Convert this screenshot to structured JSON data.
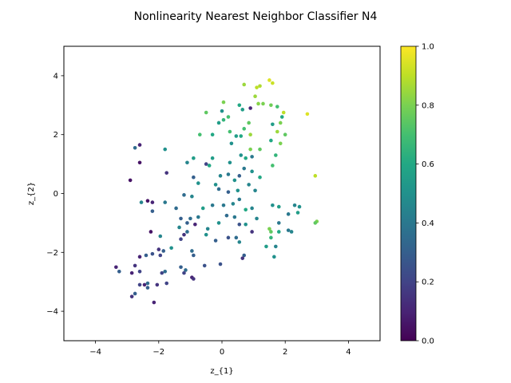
{
  "chart_data": {
    "type": "scatter",
    "title": "Nonlinearity Nearest Neighbor Classifier N4",
    "xlabel": "z_{1}",
    "ylabel": "z_{2}",
    "xlim": [
      -5,
      5
    ],
    "ylim": [
      -5,
      5
    ],
    "x_ticks": [
      -4,
      -2,
      0,
      2,
      4
    ],
    "x_tick_labels": [
      "−4",
      "−2",
      "0",
      "2",
      "4"
    ],
    "y_ticks": [
      -4,
      -2,
      0,
      2,
      4
    ],
    "y_tick_labels": [
      "−4",
      "−2",
      "0",
      "2",
      "4"
    ],
    "grid": false,
    "colormap": "viridis",
    "colorbar": {
      "range": [
        0.0,
        1.0
      ],
      "ticks": [
        0.0,
        0.2,
        0.4,
        0.6,
        0.8,
        1.0
      ],
      "tick_labels": [
        "0.0",
        "0.2",
        "0.4",
        "0.6",
        "0.8",
        "1.0"
      ]
    },
    "points": [
      {
        "x": 0.7,
        "y": 3.7,
        "c": 0.85
      },
      {
        "x": 1.1,
        "y": 3.6,
        "c": 0.9
      },
      {
        "x": 1.2,
        "y": 3.65,
        "c": 0.88
      },
      {
        "x": 1.5,
        "y": 3.85,
        "c": 0.95
      },
      {
        "x": 1.6,
        "y": 3.75,
        "c": 0.92
      },
      {
        "x": 1.05,
        "y": 3.3,
        "c": 0.85
      },
      {
        "x": 1.15,
        "y": 3.05,
        "c": 0.82
      },
      {
        "x": 1.3,
        "y": 3.05,
        "c": 0.8
      },
      {
        "x": 1.55,
        "y": 3.0,
        "c": 0.78
      },
      {
        "x": 1.75,
        "y": 2.95,
        "c": 0.7
      },
      {
        "x": 0.55,
        "y": 3.0,
        "c": 0.6
      },
      {
        "x": 0.05,
        "y": 3.1,
        "c": 0.8
      },
      {
        "x": 0.9,
        "y": 2.9,
        "c": 0.1
      },
      {
        "x": 0.0,
        "y": 2.8,
        "c": 0.5
      },
      {
        "x": 0.2,
        "y": 2.6,
        "c": 0.7
      },
      {
        "x": -0.5,
        "y": 2.75,
        "c": 0.75
      },
      {
        "x": 0.65,
        "y": 2.85,
        "c": 0.55
      },
      {
        "x": 1.9,
        "y": 2.6,
        "c": 0.6
      },
      {
        "x": 1.95,
        "y": 2.75,
        "c": 0.9
      },
      {
        "x": 2.7,
        "y": 2.7,
        "c": 0.95
      },
      {
        "x": 1.6,
        "y": 2.35,
        "c": 0.55
      },
      {
        "x": 0.85,
        "y": 2.4,
        "c": 0.75
      },
      {
        "x": 0.7,
        "y": 2.2,
        "c": 0.7
      },
      {
        "x": 0.25,
        "y": 2.1,
        "c": 0.7
      },
      {
        "x": -0.1,
        "y": 2.4,
        "c": 0.55
      },
      {
        "x": 0.05,
        "y": 2.5,
        "c": 0.65
      },
      {
        "x": 1.85,
        "y": 2.4,
        "c": 0.8
      },
      {
        "x": 1.75,
        "y": 2.1,
        "c": 0.85
      },
      {
        "x": 1.85,
        "y": 1.7,
        "c": 0.8
      },
      {
        "x": 0.9,
        "y": 2.0,
        "c": 0.85
      },
      {
        "x": 0.6,
        "y": 1.95,
        "c": 0.6
      },
      {
        "x": 0.45,
        "y": 1.95,
        "c": 0.55
      },
      {
        "x": -0.7,
        "y": 2.0,
        "c": 0.7
      },
      {
        "x": -0.3,
        "y": 2.0,
        "c": 0.6
      },
      {
        "x": 0.3,
        "y": 1.7,
        "c": 0.5
      },
      {
        "x": 1.55,
        "y": 1.8,
        "c": 0.6
      },
      {
        "x": 2.0,
        "y": 2.0,
        "c": 0.75
      },
      {
        "x": 0.6,
        "y": 1.3,
        "c": 0.5
      },
      {
        "x": 0.9,
        "y": 1.5,
        "c": 0.8
      },
      {
        "x": 1.2,
        "y": 1.5,
        "c": 0.75
      },
      {
        "x": 1.7,
        "y": 1.3,
        "c": 0.65
      },
      {
        "x": -0.3,
        "y": 1.2,
        "c": 0.55
      },
      {
        "x": -0.9,
        "y": 1.2,
        "c": 0.55
      },
      {
        "x": -1.1,
        "y": 1.05,
        "c": 0.45
      },
      {
        "x": -0.5,
        "y": 1.0,
        "c": 0.2
      },
      {
        "x": -0.4,
        "y": 0.95,
        "c": 0.6
      },
      {
        "x": 0.25,
        "y": 1.05,
        "c": 0.5
      },
      {
        "x": 0.75,
        "y": 1.2,
        "c": 0.6
      },
      {
        "x": 0.95,
        "y": 1.25,
        "c": 0.4
      },
      {
        "x": 1.6,
        "y": 0.95,
        "c": 0.7
      },
      {
        "x": -1.8,
        "y": 1.5,
        "c": 0.5
      },
      {
        "x": -2.75,
        "y": 1.55,
        "c": 0.35
      },
      {
        "x": -2.6,
        "y": 1.65,
        "c": 0.1
      },
      {
        "x": -2.6,
        "y": 1.05,
        "c": 0.05
      },
      {
        "x": -1.75,
        "y": 0.7,
        "c": 0.15
      },
      {
        "x": -2.9,
        "y": 0.45,
        "c": 0.05
      },
      {
        "x": -0.05,
        "y": 0.6,
        "c": 0.45
      },
      {
        "x": 0.2,
        "y": 0.65,
        "c": 0.4
      },
      {
        "x": 0.55,
        "y": 0.6,
        "c": 0.3
      },
      {
        "x": 0.7,
        "y": 0.85,
        "c": 0.4
      },
      {
        "x": 0.95,
        "y": 0.75,
        "c": 0.5
      },
      {
        "x": 1.2,
        "y": 0.55,
        "c": 0.6
      },
      {
        "x": -0.9,
        "y": 0.55,
        "c": 0.3
      },
      {
        "x": -0.75,
        "y": 0.35,
        "c": 0.5
      },
      {
        "x": -0.2,
        "y": 0.3,
        "c": 0.5
      },
      {
        "x": 0.4,
        "y": 0.45,
        "c": 0.5
      },
      {
        "x": -0.1,
        "y": 0.15,
        "c": 0.35
      },
      {
        "x": 0.2,
        "y": 0.05,
        "c": 0.3
      },
      {
        "x": 0.5,
        "y": 0.1,
        "c": 0.5
      },
      {
        "x": 0.85,
        "y": 0.3,
        "c": 0.45
      },
      {
        "x": 1.05,
        "y": 0.1,
        "c": 0.45
      },
      {
        "x": -1.2,
        "y": -0.05,
        "c": 0.35
      },
      {
        "x": -1.8,
        "y": -0.3,
        "c": 0.4
      },
      {
        "x": -2.35,
        "y": -0.25,
        "c": 0.05
      },
      {
        "x": -2.2,
        "y": -0.3,
        "c": 0.1
      },
      {
        "x": -2.55,
        "y": -0.3,
        "c": 0.45
      },
      {
        "x": -2.2,
        "y": -0.6,
        "c": 0.3
      },
      {
        "x": -1.45,
        "y": -0.5,
        "c": 0.35
      },
      {
        "x": -0.95,
        "y": -0.1,
        "c": 0.45
      },
      {
        "x": -0.6,
        "y": -0.5,
        "c": 0.55
      },
      {
        "x": -0.3,
        "y": -0.4,
        "c": 0.4
      },
      {
        "x": 0.05,
        "y": -0.4,
        "c": 0.4
      },
      {
        "x": 0.35,
        "y": -0.35,
        "c": 0.45
      },
      {
        "x": 0.55,
        "y": -0.2,
        "c": 0.4
      },
      {
        "x": 0.75,
        "y": -0.55,
        "c": 0.6
      },
      {
        "x": 0.95,
        "y": -0.5,
        "c": 0.45
      },
      {
        "x": 1.1,
        "y": -0.85,
        "c": 0.45
      },
      {
        "x": 1.6,
        "y": -0.4,
        "c": 0.5
      },
      {
        "x": 1.8,
        "y": -0.45,
        "c": 0.55
      },
      {
        "x": 2.1,
        "y": -0.7,
        "c": 0.4
      },
      {
        "x": 2.3,
        "y": -0.4,
        "c": 0.45
      },
      {
        "x": 2.45,
        "y": -0.45,
        "c": 0.5
      },
      {
        "x": 2.4,
        "y": -0.65,
        "c": 0.55
      },
      {
        "x": -1.3,
        "y": -0.85,
        "c": 0.3
      },
      {
        "x": -1.0,
        "y": -0.85,
        "c": 0.35
      },
      {
        "x": -0.75,
        "y": -0.8,
        "c": 0.4
      },
      {
        "x": -0.45,
        "y": -1.2,
        "c": 0.45
      },
      {
        "x": -0.1,
        "y": -1.0,
        "c": 0.5
      },
      {
        "x": 0.15,
        "y": -0.75,
        "c": 0.35
      },
      {
        "x": 0.4,
        "y": -0.8,
        "c": 0.4
      },
      {
        "x": 0.55,
        "y": -1.05,
        "c": 0.25
      },
      {
        "x": 0.75,
        "y": -1.05,
        "c": 0.5
      },
      {
        "x": 0.95,
        "y": -1.3,
        "c": 0.15
      },
      {
        "x": 1.8,
        "y": -1.0,
        "c": 0.4
      },
      {
        "x": -1.1,
        "y": -1.0,
        "c": 0.3
      },
      {
        "x": -1.35,
        "y": -1.15,
        "c": 0.45
      },
      {
        "x": -0.85,
        "y": -1.05,
        "c": 0.1
      },
      {
        "x": -1.1,
        "y": -1.3,
        "c": 0.35
      },
      {
        "x": -1.2,
        "y": -1.4,
        "c": 0.15
      },
      {
        "x": -1.3,
        "y": -1.55,
        "c": 0.2
      },
      {
        "x": -0.5,
        "y": -1.4,
        "c": 0.5
      },
      {
        "x": -0.2,
        "y": -1.6,
        "c": 0.3
      },
      {
        "x": 0.2,
        "y": -1.5,
        "c": 0.25
      },
      {
        "x": 0.45,
        "y": -1.5,
        "c": 0.35
      },
      {
        "x": 0.55,
        "y": -1.65,
        "c": 0.45
      },
      {
        "x": 1.5,
        "y": -1.2,
        "c": 0.8
      },
      {
        "x": 1.55,
        "y": -1.3,
        "c": 0.75
      },
      {
        "x": 1.55,
        "y": -1.5,
        "c": 0.65
      },
      {
        "x": 1.8,
        "y": -1.3,
        "c": 0.6
      },
      {
        "x": 2.1,
        "y": -1.25,
        "c": 0.4
      },
      {
        "x": 2.2,
        "y": -1.3,
        "c": 0.45
      },
      {
        "x": 3.0,
        "y": -0.95,
        "c": 0.8
      },
      {
        "x": 2.95,
        "y": -1.0,
        "c": 0.75
      },
      {
        "x": -1.95,
        "y": -1.45,
        "c": 0.45
      },
      {
        "x": -2.25,
        "y": -1.3,
        "c": 0.05
      },
      {
        "x": -1.6,
        "y": -1.85,
        "c": 0.5
      },
      {
        "x": -1.85,
        "y": -1.95,
        "c": 0.3
      },
      {
        "x": -2.0,
        "y": -1.9,
        "c": 0.15
      },
      {
        "x": -1.95,
        "y": -2.1,
        "c": 0.2
      },
      {
        "x": -0.95,
        "y": -1.95,
        "c": 0.35
      },
      {
        "x": -0.9,
        "y": -2.1,
        "c": 0.3
      },
      {
        "x": -0.55,
        "y": -2.45,
        "c": 0.25
      },
      {
        "x": 0.7,
        "y": -2.1,
        "c": 0.3
      },
      {
        "x": 0.65,
        "y": -2.2,
        "c": 0.15
      },
      {
        "x": 1.4,
        "y": -1.8,
        "c": 0.55
      },
      {
        "x": 1.7,
        "y": -1.8,
        "c": 0.45
      },
      {
        "x": 1.65,
        "y": -2.15,
        "c": 0.5
      },
      {
        "x": -0.05,
        "y": -2.4,
        "c": 0.25
      },
      {
        "x": -2.4,
        "y": -2.1,
        "c": 0.3
      },
      {
        "x": -2.2,
        "y": -2.05,
        "c": 0.25
      },
      {
        "x": -2.6,
        "y": -2.15,
        "c": 0.1
      },
      {
        "x": -2.75,
        "y": -2.45,
        "c": 0.15
      },
      {
        "x": -3.35,
        "y": -2.5,
        "c": 0.1
      },
      {
        "x": -3.25,
        "y": -2.65,
        "c": 0.3
      },
      {
        "x": -2.85,
        "y": -2.7,
        "c": 0.1
      },
      {
        "x": -2.6,
        "y": -2.65,
        "c": 0.2
      },
      {
        "x": -1.9,
        "y": -2.7,
        "c": 0.2
      },
      {
        "x": -1.8,
        "y": -2.65,
        "c": 0.35
      },
      {
        "x": -1.3,
        "y": -2.5,
        "c": 0.3
      },
      {
        "x": -1.15,
        "y": -2.6,
        "c": 0.35
      },
      {
        "x": -1.2,
        "y": -2.7,
        "c": 0.2
      },
      {
        "x": -0.95,
        "y": -2.85,
        "c": 0.1
      },
      {
        "x": -0.9,
        "y": -2.9,
        "c": 0.15
      },
      {
        "x": -2.6,
        "y": -3.1,
        "c": 0.2
      },
      {
        "x": -2.45,
        "y": -3.1,
        "c": 0.1
      },
      {
        "x": -2.35,
        "y": -3.05,
        "c": 0.35
      },
      {
        "x": -2.35,
        "y": -3.2,
        "c": 0.3
      },
      {
        "x": -2.05,
        "y": -3.1,
        "c": 0.15
      },
      {
        "x": -1.75,
        "y": -3.05,
        "c": 0.2
      },
      {
        "x": -2.75,
        "y": -3.4,
        "c": 0.3
      },
      {
        "x": -2.85,
        "y": -3.5,
        "c": 0.15
      },
      {
        "x": -2.15,
        "y": -3.7,
        "c": 0.1
      },
      {
        "x": 2.95,
        "y": 0.6,
        "c": 0.9
      }
    ]
  }
}
